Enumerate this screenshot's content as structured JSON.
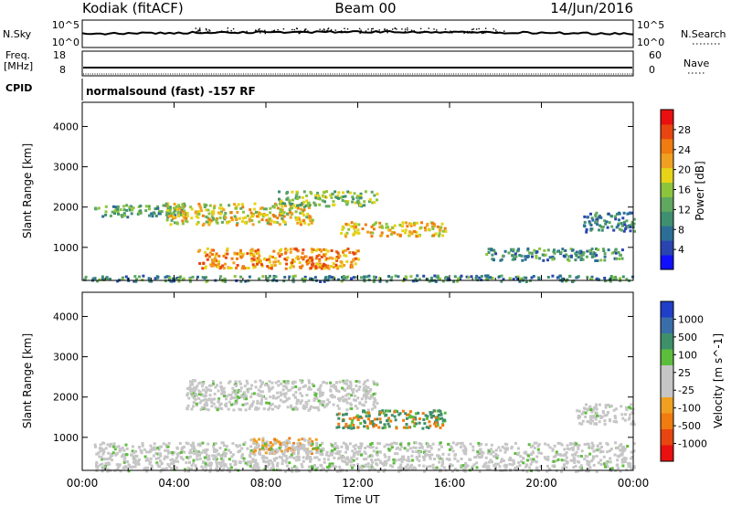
{
  "header": {
    "station": "Kodiak (fitACF)",
    "beam": "Beam 00",
    "date": "14/Jun/2016"
  },
  "strips": {
    "nsky_label": "N.Sky",
    "nsky_ticks": [
      "10^5",
      "10^0"
    ],
    "nsearch_label": "N.Search",
    "nsearch_ticks": [
      "10^5",
      "10^0"
    ],
    "freq_label": "Freq.",
    "freq_unit": "[MHz]",
    "freq_ticks": [
      "18",
      "8"
    ],
    "nave_label": "Nave",
    "nave_ticks": [
      "60",
      "0"
    ],
    "cpid_label": "CPID",
    "cpid_text": "normalsound (fast) -157 RF"
  },
  "chart_data": [
    {
      "type": "heatmap",
      "panel": "power",
      "ylabel": "Slant Range [km]",
      "xlabel": "",
      "ylim": [
        180,
        4600
      ],
      "xlim": [
        0,
        24
      ],
      "y_ticks": [
        1000,
        2000,
        3000,
        4000
      ],
      "x_ticks": [
        0,
        4,
        8,
        12,
        16,
        20,
        24
      ],
      "colorbar": {
        "label": "Power [dB]",
        "range": [
          0,
          32
        ],
        "ticks": [
          "4",
          "8",
          "12",
          "16",
          "20",
          "24",
          "28"
        ],
        "colors": [
          "#1010ff",
          "#2a44b0",
          "#2c6e96",
          "#3f9070",
          "#5fa860",
          "#8cc43c",
          "#e7d317",
          "#f0a020",
          "#f07b10",
          "#e84510",
          "#e81010"
        ]
      },
      "echo_regions": [
        {
          "t0": 0.5,
          "t1": 4.5,
          "r0": 1780,
          "r1": 2080,
          "level": 0.35
        },
        {
          "t0": 3.6,
          "t1": 10.0,
          "r0": 1580,
          "r1": 2120,
          "level": 0.6
        },
        {
          "t0": 8.5,
          "t1": 12.8,
          "r0": 2050,
          "r1": 2420,
          "level": 0.45
        },
        {
          "t0": 11.2,
          "t1": 15.8,
          "r0": 1300,
          "r1": 1650,
          "level": 0.65
        },
        {
          "t0": 5.0,
          "t1": 12.0,
          "r0": 500,
          "r1": 1000,
          "level": 0.75
        },
        {
          "t0": 0.0,
          "t1": 24.0,
          "r0": 180,
          "r1": 330,
          "level": 0.3
        },
        {
          "t0": 17.5,
          "t1": 23.5,
          "r0": 700,
          "r1": 1000,
          "level": 0.3
        },
        {
          "t0": 21.8,
          "t1": 24.0,
          "r0": 1400,
          "r1": 1900,
          "level": 0.25
        }
      ]
    },
    {
      "type": "heatmap",
      "panel": "velocity",
      "ylabel": "Slant Range [km]",
      "xlabel": "Time UT",
      "ylim": [
        180,
        4600
      ],
      "xlim": [
        0,
        24
      ],
      "y_ticks": [
        1000,
        2000,
        3000,
        4000
      ],
      "x_ticks": [
        0,
        4,
        8,
        12,
        16,
        20,
        24
      ],
      "x_tick_labels": [
        "00:00",
        "04:00",
        "08:00",
        "12:00",
        "16:00",
        "20:00",
        "00:00"
      ],
      "colorbar": {
        "label": "Velocity [m s^-1]",
        "ticks": [
          "1000",
          "500",
          "100",
          "25",
          "-25",
          "-100",
          "-500",
          "-1000"
        ],
        "colors": [
          "#1f3fc8",
          "#3a6ea8",
          "#3f8f6a",
          "#5cbd3c",
          "#c6c6c6",
          "#c6c6c6",
          "#f0a020",
          "#f07b10",
          "#e84510",
          "#e81010"
        ]
      },
      "echo_regions": [
        {
          "t0": 4.5,
          "t1": 12.8,
          "r0": 1700,
          "r1": 2450,
          "level": 0.5
        },
        {
          "t0": 11.0,
          "t1": 15.8,
          "r0": 1250,
          "r1": 1700,
          "level": 0.75
        },
        {
          "t0": 7.2,
          "t1": 10.2,
          "r0": 620,
          "r1": 1020,
          "level": 0.85
        },
        {
          "t0": 0.5,
          "t1": 24.0,
          "r0": 180,
          "r1": 900,
          "level": 0.5
        },
        {
          "t0": 21.5,
          "t1": 24.0,
          "r0": 1350,
          "r1": 1850,
          "level": 0.5
        }
      ]
    }
  ]
}
